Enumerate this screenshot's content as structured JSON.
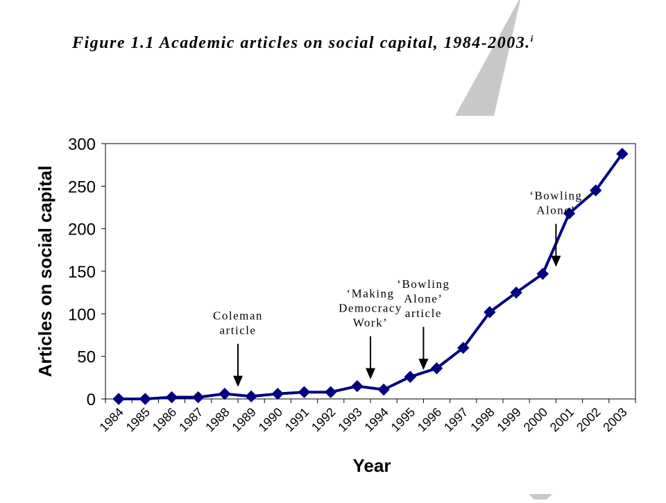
{
  "figure": {
    "title": "Figure 1.1 Academic articles on social capital, 1984-2003.",
    "title_sup": "i"
  },
  "chart_data": {
    "type": "line",
    "title": "Figure 1.1 Academic articles on social capital, 1984-2003.",
    "xlabel": "Year",
    "ylabel": "Articles on social capital",
    "categories": [
      "1984",
      "1985",
      "1986",
      "1987",
      "1988",
      "1989",
      "1990",
      "1991",
      "1992",
      "1993",
      "1994",
      "1995",
      "1996",
      "1997",
      "1998",
      "1999",
      "2000",
      "2001",
      "2002",
      "2003"
    ],
    "series": [
      {
        "values": [
          0,
          0,
          2,
          2,
          6,
          3,
          6,
          8,
          8,
          15,
          11,
          26,
          36,
          60,
          102,
          125,
          147,
          218,
          245,
          288
        ]
      }
    ],
    "ylim": [
      0,
      300
    ],
    "yticks": [
      "0",
      "50",
      "100",
      "150",
      "200",
      "250",
      "300"
    ],
    "grid": false,
    "legend": "none",
    "colors": {
      "line": "#000080",
      "marker": "#000080",
      "frame": "#000000",
      "decor": "#c8c8c8"
    },
    "marker": "diamond",
    "annotations": [
      {
        "lines": [
          "Coleman",
          "article"
        ],
        "x_index": 4
      },
      {
        "lines": [
          "‘Making",
          "Democracy",
          "Work’"
        ],
        "x_index": 9
      },
      {
        "lines": [
          "‘Bowling",
          "Alone’",
          "article"
        ],
        "x_index": 11
      },
      {
        "lines": [
          "‘Bowling",
          "Alone’"
        ],
        "x_index": 16
      }
    ]
  }
}
